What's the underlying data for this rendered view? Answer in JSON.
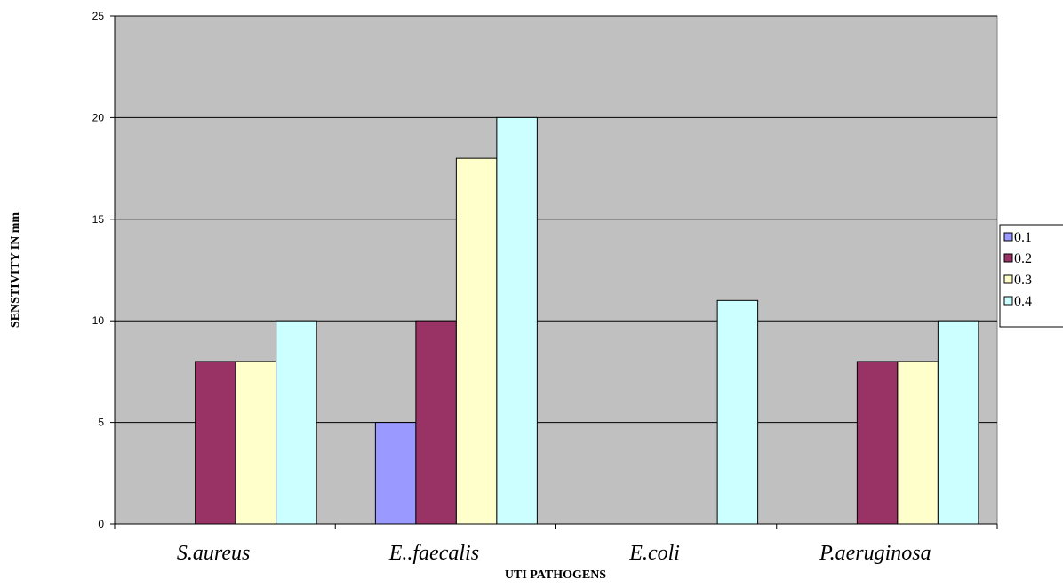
{
  "chart_data": {
    "type": "bar",
    "categories": [
      "S.aureus",
      "E..faecalis",
      "E.coli",
      "P.aeruginosa"
    ],
    "series": [
      {
        "name": "0.1",
        "values": [
          0,
          5,
          0,
          0
        ],
        "color": "#9999FF"
      },
      {
        "name": "0.2",
        "values": [
          8,
          10,
          0,
          8
        ],
        "color": "#993366"
      },
      {
        "name": "0.3",
        "values": [
          8,
          18,
          0,
          8
        ],
        "color": "#FFFFCC"
      },
      {
        "name": "0.4",
        "values": [
          10,
          20,
          11,
          10
        ],
        "color": "#CCFFFF"
      }
    ],
    "title": "",
    "xlabel": "UTI PATHOGENS",
    "ylabel": "SENSTIVITY IN mm",
    "ylim": [
      0,
      25
    ],
    "yticks": [
      0,
      5,
      10,
      15,
      20,
      25
    ],
    "grid": true,
    "legend_position": "right",
    "plot_background": "#C0C0C0",
    "bar_outline": "#000000"
  }
}
